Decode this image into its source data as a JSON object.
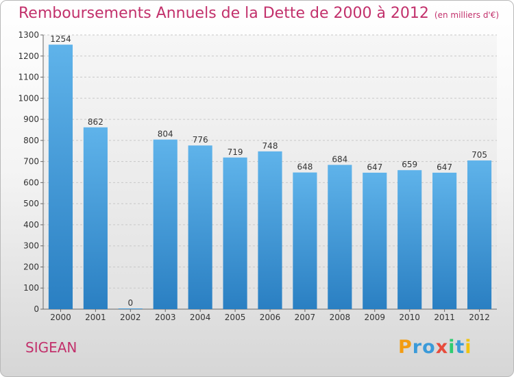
{
  "header": {
    "title": "Remboursements Annuels de la Dette de 2000 à 2012",
    "unit": "(en milliers d'€)"
  },
  "footer": {
    "commune": "SIGEAN",
    "logo_letters": [
      "P",
      "r",
      "o",
      "x",
      "i",
      "t",
      "i"
    ]
  },
  "colors": {
    "title": "#c2306b",
    "bar_top": "#5fb3ea",
    "bar_bottom": "#2a7fc2"
  },
  "chart_data": {
    "type": "bar",
    "categories": [
      "2000",
      "2001",
      "2002",
      "2003",
      "2004",
      "2005",
      "2006",
      "2007",
      "2008",
      "2009",
      "2010",
      "2011",
      "2012"
    ],
    "values": [
      1254,
      862,
      0,
      804,
      776,
      719,
      748,
      648,
      684,
      647,
      659,
      647,
      705
    ],
    "value_labels": [
      "1254",
      "862",
      "0",
      "804",
      "776",
      "719",
      "748",
      "648",
      "684",
      "647",
      "659",
      "647",
      "705"
    ],
    "title": "Remboursements Annuels de la Dette de 2000 à 2012",
    "xlabel": "",
    "ylabel": "",
    "ylim": [
      0,
      1300
    ],
    "yticks": [
      0,
      100,
      200,
      300,
      400,
      500,
      600,
      700,
      800,
      900,
      1000,
      1100,
      1200,
      1300
    ],
    "grid": true
  }
}
